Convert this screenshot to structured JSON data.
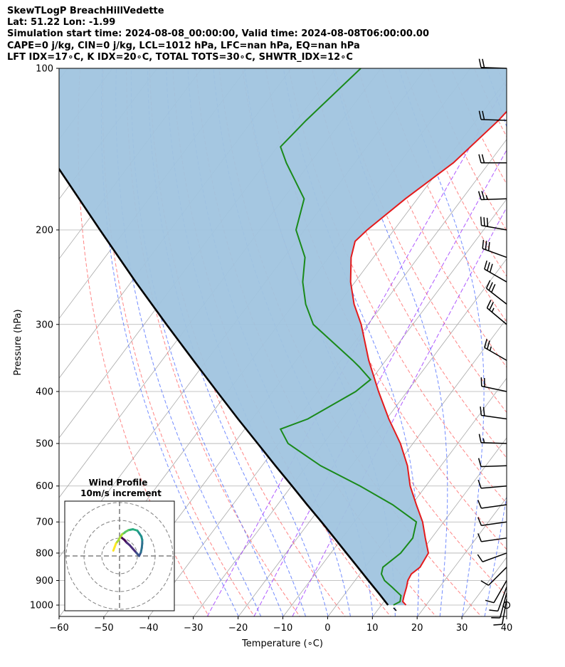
{
  "header": {
    "line1": "SkewTLogP BreachHillVedette",
    "line2": "Lat: 51.22   Lon: -1.99",
    "line3": "Simulation start time: 2024-08-08_00:00:00, Valid time: 2024-08-08T06:00:00.00",
    "line4": "CAPE=0 j/kg, CIN=0 j/kg, LCL=1012 hPa, LFC=nan hPa, EQ=nan hPa",
    "line5": "LFT IDX=17∘C, K IDX=20∘C, TOTAL TOTS=30∘C, SHWTR_IDX=12∘C"
  },
  "chart_data": {
    "type": "line",
    "subtype": "skew-T log-P diagram",
    "xlabel": "Temperature (∘C)",
    "ylabel": "Pressure (hPa)",
    "xlim": [
      -60,
      40
    ],
    "ylim": [
      1050,
      100
    ],
    "y_scale": "log",
    "x_ticks": [
      "−60",
      "−50",
      "−40",
      "−30",
      "−20",
      "−10",
      "0",
      "10",
      "20",
      "30",
      "40"
    ],
    "x_tick_values": [
      -60,
      -50,
      -40,
      -30,
      -20,
      -10,
      0,
      10,
      20,
      30,
      40
    ],
    "y_ticks": [
      "100",
      "200",
      "300",
      "400",
      "500",
      "600",
      "700",
      "800",
      "900",
      "1000"
    ],
    "y_tick_values": [
      100,
      200,
      300,
      400,
      500,
      600,
      700,
      800,
      900,
      1000
    ],
    "grid": true,
    "colors": {
      "temperature": "#e41a1c",
      "dewpoint": "#1a8a1a",
      "parcel": "#000000",
      "shading": "#a0c4df",
      "dry_adiabat": "#ff6666",
      "moist_adiabat": "#4466ff",
      "mixing_ratio": "#9b30ff",
      "isotherm": "#999999"
    },
    "series": [
      {
        "role": "temperature",
        "p": [
          1000,
          985,
          960,
          925,
          900,
          875,
          850,
          800,
          750,
          700,
          650,
          600,
          550,
          500,
          450,
          400,
          350,
          300,
          275,
          250,
          225,
          210,
          200,
          175,
          150,
          125,
          100
        ],
        "t": [
          15.5,
          14.2,
          13.5,
          12.6,
          11.8,
          11.5,
          12.3,
          11.8,
          8.6,
          5.3,
          1.0,
          -3.5,
          -7.5,
          -12.8,
          -19.5,
          -26.4,
          -33.8,
          -41.5,
          -46.5,
          -51.0,
          -55.0,
          -56.8,
          -56.0,
          -52.7,
          -48.0,
          -45.0,
          -43.0
        ]
      },
      {
        "role": "dewpoint",
        "p": [
          1000,
          985,
          960,
          925,
          900,
          875,
          850,
          800,
          750,
          700,
          650,
          600,
          550,
          500,
          470,
          450,
          400,
          380,
          360,
          350,
          300,
          275,
          250,
          225,
          200,
          175,
          150,
          140,
          125,
          100
        ],
        "t": [
          12.7,
          13.6,
          12.8,
          9.3,
          6.6,
          4.8,
          4.0,
          5.6,
          5.8,
          3.9,
          -4.3,
          -14.7,
          -26.9,
          -37.9,
          -42.0,
          -37.6,
          -31.5,
          -30.2,
          -34.8,
          -37.4,
          -52.2,
          -57.3,
          -61.7,
          -65.3,
          -71.9,
          -75.3,
          -85.3,
          -89.3,
          -88.0,
          -84.5
        ]
      },
      {
        "role": "parcel",
        "p": [
          1000,
          950,
          900,
          850,
          800,
          750,
          700,
          650,
          600,
          550,
          500,
          450,
          400,
          350,
          300,
          250,
          200,
          150,
          100
        ],
        "t": [
          11.5,
          7.4,
          3.0,
          -1.6,
          -6.5,
          -11.7,
          -17.3,
          -23.4,
          -29.9,
          -37.0,
          -44.7,
          -53.2,
          -62.5,
          -73.0,
          -85.0,
          -99.0,
          -115.7,
          -137.0,
          -166.5
        ]
      }
    ],
    "wind_barbs": {
      "p": [
        100,
        125,
        150,
        175,
        200,
        225,
        250,
        275,
        300,
        350,
        400,
        450,
        500,
        550,
        600,
        650,
        700,
        750,
        800,
        850,
        900,
        925,
        950,
        975,
        1000
      ],
      "speed_kt": [
        20,
        20,
        20,
        25,
        30,
        30,
        30,
        30,
        25,
        25,
        20,
        20,
        15,
        10,
        10,
        10,
        10,
        10,
        10,
        10,
        10,
        10,
        10,
        10,
        0
      ],
      "dir_deg": [
        272,
        272,
        270,
        268,
        280,
        290,
        300,
        308,
        310,
        300,
        282,
        278,
        272,
        268,
        265,
        262,
        262,
        262,
        250,
        225,
        210,
        200,
        195,
        190,
        0
      ]
    },
    "wind_profile_inset": {
      "title": "Wind Profile",
      "subtitle": "10m/s increment",
      "u": [
        0.3,
        0.6,
        1.1,
        1.6,
        2.3,
        3.0,
        3.8,
        4.4,
        4.8,
        5.0,
        5.1,
        5.1,
        4.9,
        4.5,
        4.0,
        3.0,
        2.0,
        1.3,
        1.1,
        0.6,
        0.2,
        -0.2,
        -0.8,
        -1.1,
        -1.4
      ],
      "v": [
        -4.3,
        -4.0,
        -3.6,
        -3.0,
        -2.4,
        -1.6,
        -0.7,
        0.0,
        -0.8,
        -1.8,
        -2.8,
        -3.6,
        -4.4,
        -5.0,
        -5.7,
        -6.0,
        -5.8,
        -5.4,
        -5.2,
        -4.9,
        -4.3,
        -3.6,
        -2.8,
        -2.0,
        -1.2
      ]
    }
  }
}
